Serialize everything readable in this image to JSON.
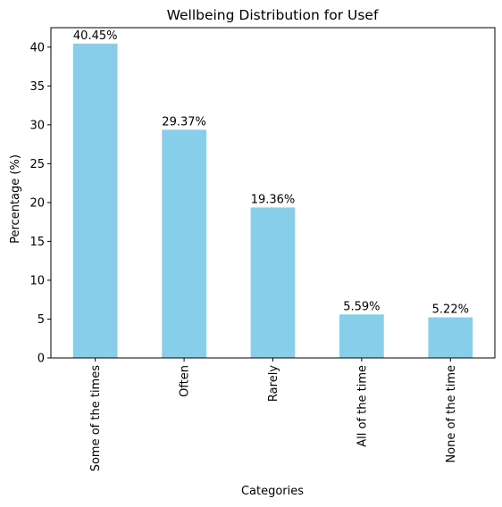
{
  "chart_data": {
    "type": "bar",
    "title": "Wellbeing Distribution for Usef",
    "xlabel": "Categories",
    "ylabel": "Percentage (%)",
    "categories": [
      "Some of the times",
      "Often",
      "Rarely",
      "All of the time",
      "None of the time"
    ],
    "values": [
      40.45,
      29.37,
      19.36,
      5.59,
      5.22
    ],
    "data_labels": [
      "40.45%",
      "29.37%",
      "19.36%",
      "5.59%",
      "5.22%"
    ],
    "yticks": [
      0,
      5,
      10,
      15,
      20,
      25,
      30,
      35,
      40
    ],
    "ylim": [
      0,
      42.5
    ],
    "grid": false,
    "legend": "none",
    "bar_color": "#87ceeb"
  }
}
